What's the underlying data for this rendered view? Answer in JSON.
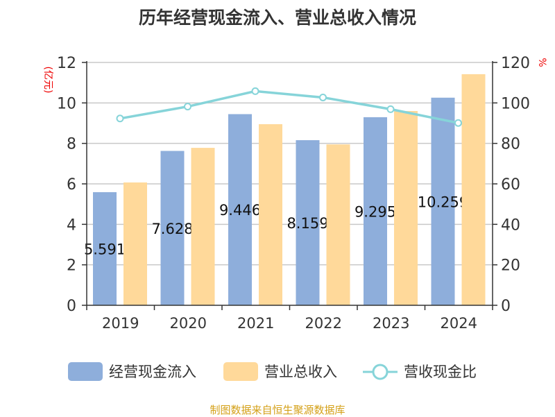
{
  "chart_data": {
    "type": "bar",
    "title": "历年经营现金流入、营业总收入情况",
    "categories": [
      "2019",
      "2020",
      "2021",
      "2022",
      "2023",
      "2024"
    ],
    "ylabel_left": "(亿元)",
    "ylabel_right": "%",
    "ylim_left": [
      0,
      12
    ],
    "ylim_right": [
      0,
      120
    ],
    "yticks_left": [
      "0",
      "2",
      "4",
      "6",
      "8",
      "10",
      "12"
    ],
    "yticks_right": [
      "0",
      "20",
      "40",
      "60",
      "80",
      "100",
      "120"
    ],
    "grid": true,
    "legend_position": "bottom",
    "series": [
      {
        "name": "经营现金流入",
        "type": "bar",
        "axis": "left",
        "color": "#8eaedb",
        "values": [
          5.591,
          7.628,
          9.446,
          8.159,
          9.295,
          10.259
        ],
        "labels": [
          "5.591",
          "7.628",
          "9.446",
          "8.159",
          "9.295",
          "10.259"
        ]
      },
      {
        "name": "营业总收入",
        "type": "bar",
        "axis": "left",
        "color": "#ffd99a",
        "values": [
          6.07,
          7.78,
          8.95,
          7.95,
          9.6,
          11.42
        ]
      },
      {
        "name": "营收现金比",
        "type": "line",
        "axis": "right",
        "color": "#86d4d9",
        "values": [
          92.3,
          98.2,
          105.8,
          102.7,
          96.9,
          90.1
        ]
      }
    ]
  },
  "source": "制图数据来自恒生聚源数据库"
}
